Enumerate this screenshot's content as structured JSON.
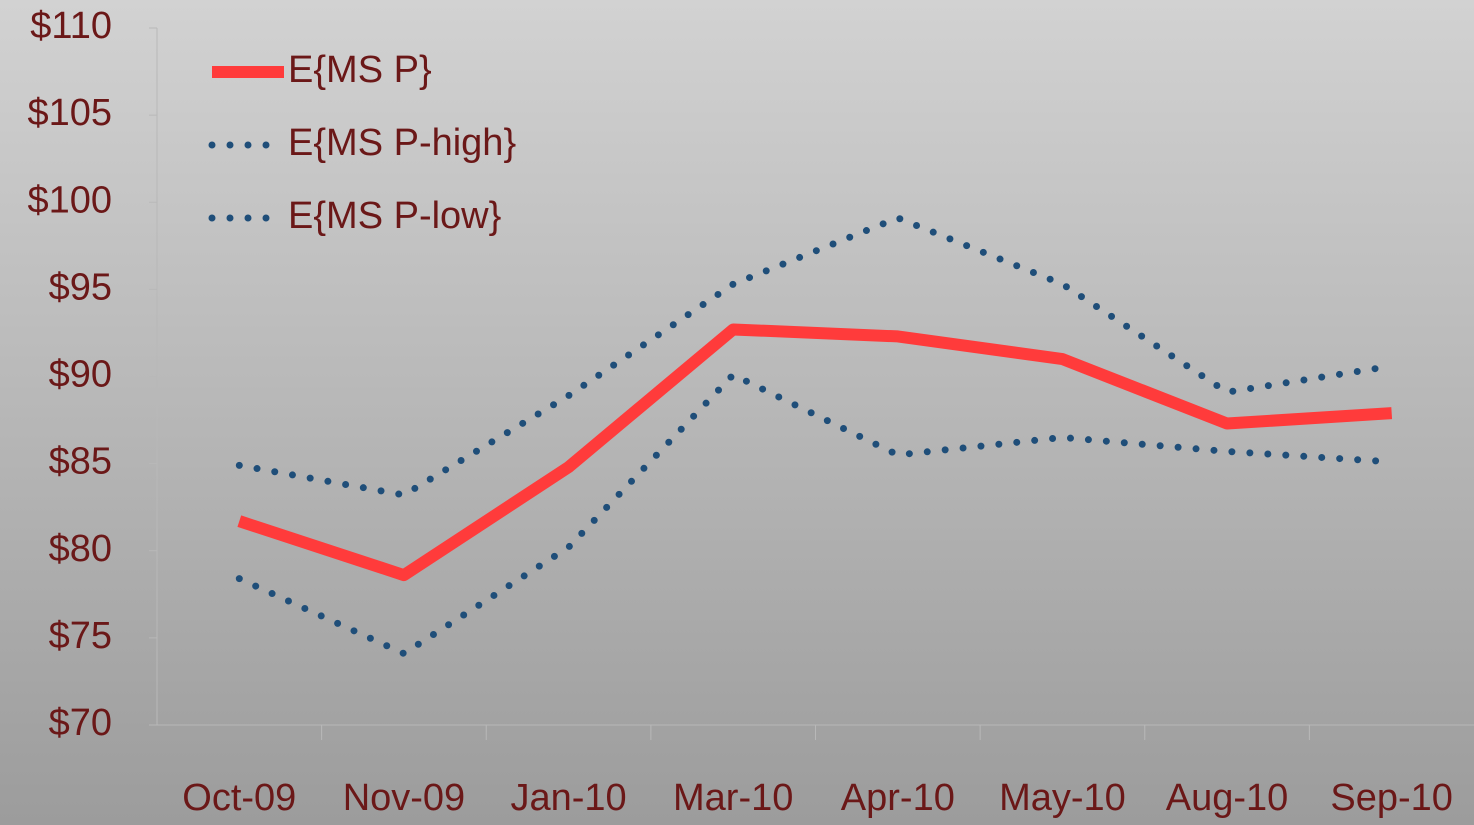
{
  "chart_data": {
    "type": "line",
    "categories": [
      "Oct-09",
      "Nov-09",
      "Jan-10",
      "Mar-10",
      "Apr-10",
      "May-10",
      "Aug-10",
      "Sep-10"
    ],
    "series": [
      {
        "name": "E{MS P}",
        "color": "#ff3b3b",
        "style": "solid",
        "values": [
          81.7,
          78.6,
          84.8,
          92.7,
          92.3,
          91.0,
          87.3,
          87.9
        ]
      },
      {
        "name": "E{MS P-high}",
        "color": "#1f4e79",
        "style": "dotted",
        "values": [
          84.9,
          83.2,
          88.9,
          95.3,
          99.1,
          95.3,
          89.1,
          90.6
        ]
      },
      {
        "name": "E{MS P-low}",
        "color": "#1f4e79",
        "style": "dotted",
        "values": [
          78.4,
          74.1,
          80.2,
          90.1,
          85.5,
          86.5,
          85.7,
          85.1
        ]
      }
    ],
    "ylim": [
      70,
      110
    ],
    "yticks": [
      {
        "value": 70,
        "label": "$70"
      },
      {
        "value": 75,
        "label": "$75"
      },
      {
        "value": 80,
        "label": "$80"
      },
      {
        "value": 85,
        "label": "$85"
      },
      {
        "value": 90,
        "label": "$90"
      },
      {
        "value": 95,
        "label": "$95"
      },
      {
        "value": 100,
        "label": "$100"
      },
      {
        "value": 105,
        "label": "$105"
      },
      {
        "value": 110,
        "label": "$110"
      }
    ],
    "grid": false,
    "legend": "upper left"
  }
}
